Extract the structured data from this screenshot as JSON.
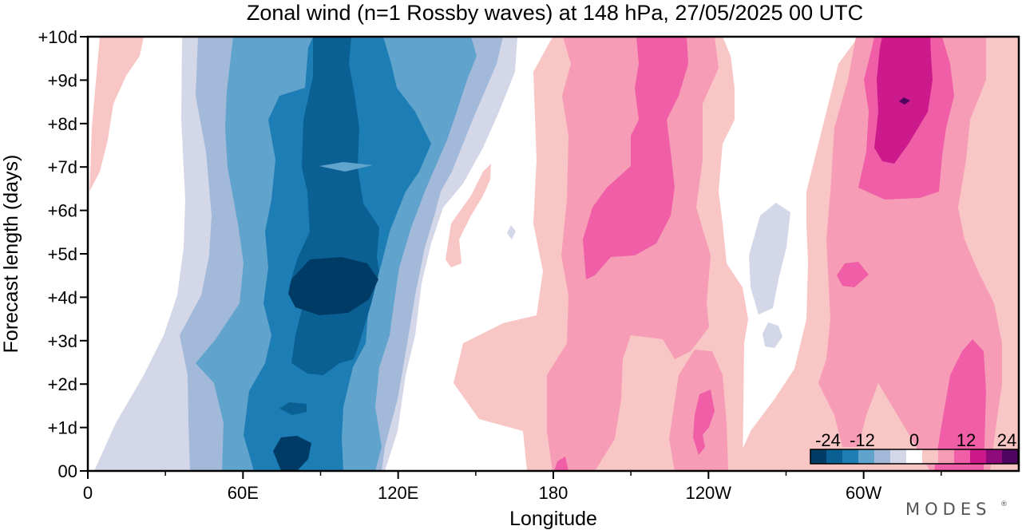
{
  "title": "Zonal wind (n=1 Rossby waves) at 148 hPa,  27/05/2025  00 UTC",
  "xlabel": "Longitude",
  "ylabel": "Forecast length (days)",
  "logo": "MODES",
  "logo_mark": "®",
  "chart_data": {
    "type": "heatmap",
    "title": "Zonal wind (n=1 Rossby waves) at 148 hPa,  27/05/2025  00 UTC",
    "xlabel": "Longitude",
    "ylabel": "Forecast length (days)",
    "x_ticks": [
      {
        "lon": 0,
        "label": "0"
      },
      {
        "lon": 60,
        "label": "60E"
      },
      {
        "lon": 120,
        "label": "120E"
      },
      {
        "lon": 180,
        "label": "180"
      },
      {
        "lon": 240,
        "label": "120W"
      },
      {
        "lon": 300,
        "label": "60W"
      }
    ],
    "x_minor": [
      30,
      90,
      150,
      210,
      270,
      330
    ],
    "y_ticks": [
      {
        "day": 0,
        "label": "00"
      },
      {
        "day": 1,
        "label": "+1d"
      },
      {
        "day": 2,
        "label": "+2d"
      },
      {
        "day": 3,
        "label": "+3d"
      },
      {
        "day": 4,
        "label": "+4d"
      },
      {
        "day": 5,
        "label": "+5d"
      },
      {
        "day": 6,
        "label": "+6d"
      },
      {
        "day": 7,
        "label": "+7d"
      },
      {
        "day": 8,
        "label": "+8d"
      },
      {
        "day": 9,
        "label": "+9d"
      },
      {
        "day": 10,
        "label": "+10d"
      }
    ],
    "xlim": [
      0,
      360
    ],
    "ylim": [
      0,
      10
    ],
    "colorbar": {
      "levels": [
        -24,
        -20,
        -16,
        -12,
        -8,
        -4,
        0,
        4,
        8,
        12,
        16,
        20,
        24
      ],
      "labels": [
        "-24",
        "-12",
        "0",
        "12",
        "24"
      ],
      "label_values": [
        -24,
        -12,
        0,
        12,
        24
      ],
      "colors": [
        "#003b66",
        "#0a5f93",
        "#1d7db5",
        "#60a3cc",
        "#a2b9da",
        "#d4d7e8",
        "#ffffff",
        "#f8c6c4",
        "#f79cb6",
        "#ef5ea6",
        "#cc1a8c",
        "#8f0a7a",
        "#4f0560"
      ]
    },
    "features": [
      {
        "kind": "easterly-max",
        "lon": [
          20,
          160
        ],
        "peak_u": -24,
        "peak_lon": 92,
        "peak_day": 3.5
      },
      {
        "kind": "westerly-max",
        "lon": [
          160,
          260
        ],
        "peak_u": 16,
        "peak_lon": 200,
        "peak_day": 6
      },
      {
        "kind": "westerly-max",
        "lon": [
          280,
          360
        ],
        "peak_u": 24,
        "peak_lon": 310,
        "peak_day": 8.5
      }
    ]
  }
}
